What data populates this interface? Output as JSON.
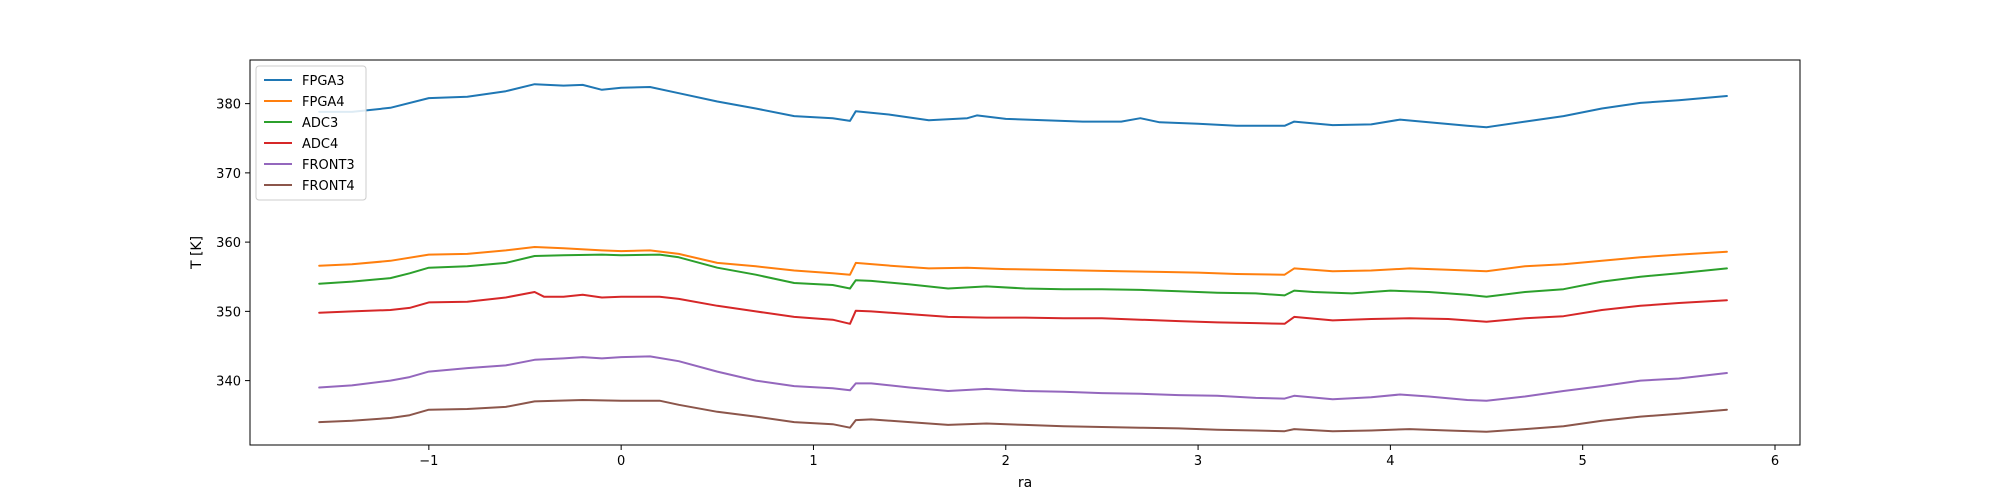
{
  "chart_data": {
    "type": "line",
    "title": "",
    "xlabel": "ra",
    "ylabel": "T [K]",
    "xlim": [
      -1.93,
      6.13
    ],
    "ylim": [
      330.7,
      386.3
    ],
    "xticks": [
      -1,
      0,
      1,
      2,
      3,
      4,
      5,
      6
    ],
    "yticks": [
      340,
      350,
      360,
      370,
      380
    ],
    "grid": false,
    "legend_position": "top-left",
    "series": [
      {
        "name": "FPGA3",
        "color": "#1f77b4",
        "x": [
          -1.57,
          -1.4,
          -1.2,
          -1.0,
          -0.8,
          -0.6,
          -0.45,
          -0.3,
          -0.2,
          -0.1,
          0.0,
          0.15,
          0.3,
          0.5,
          0.7,
          0.9,
          1.1,
          1.19,
          1.22,
          1.4,
          1.6,
          1.8,
          1.85,
          2.0,
          2.2,
          2.4,
          2.6,
          2.7,
          2.8,
          3.0,
          3.2,
          3.45,
          3.5,
          3.7,
          3.9,
          4.05,
          4.2,
          4.4,
          4.5,
          4.7,
          4.9,
          5.1,
          5.3,
          5.5,
          5.75
        ],
        "y": [
          378.8,
          378.8,
          379.4,
          380.8,
          381.0,
          381.8,
          382.8,
          382.6,
          382.7,
          382.0,
          382.3,
          382.4,
          381.5,
          380.3,
          379.3,
          378.2,
          377.9,
          377.5,
          378.9,
          378.4,
          377.6,
          377.9,
          378.3,
          377.8,
          377.6,
          377.4,
          377.4,
          377.9,
          377.3,
          377.1,
          376.8,
          376.8,
          377.4,
          376.9,
          377.0,
          377.7,
          377.3,
          376.8,
          376.6,
          377.4,
          378.2,
          379.3,
          380.1,
          380.5,
          381.1
        ]
      },
      {
        "name": "FPGA4",
        "color": "#ff7f0e",
        "x": [
          -1.57,
          -1.4,
          -1.2,
          -1.0,
          -0.8,
          -0.6,
          -0.45,
          -0.3,
          -0.1,
          0.0,
          0.15,
          0.3,
          0.5,
          0.7,
          0.9,
          1.1,
          1.19,
          1.22,
          1.4,
          1.6,
          1.8,
          2.0,
          2.2,
          2.4,
          2.6,
          2.8,
          3.0,
          3.2,
          3.45,
          3.5,
          3.7,
          3.9,
          4.1,
          4.3,
          4.5,
          4.7,
          4.9,
          5.1,
          5.3,
          5.5,
          5.75
        ],
        "y": [
          356.6,
          356.8,
          357.3,
          358.2,
          358.3,
          358.8,
          359.3,
          359.1,
          358.8,
          358.7,
          358.8,
          358.3,
          357.0,
          356.5,
          355.9,
          355.5,
          355.3,
          357.0,
          356.6,
          356.2,
          356.3,
          356.1,
          356.0,
          355.9,
          355.8,
          355.7,
          355.6,
          355.4,
          355.3,
          356.2,
          355.8,
          355.9,
          356.2,
          356.0,
          355.8,
          356.5,
          356.8,
          357.3,
          357.8,
          358.2,
          358.6
        ]
      },
      {
        "name": "ADC3",
        "color": "#2ca02c",
        "x": [
          -1.57,
          -1.4,
          -1.2,
          -1.1,
          -1.0,
          -0.8,
          -0.6,
          -0.45,
          -0.3,
          -0.1,
          0.0,
          0.2,
          0.3,
          0.5,
          0.7,
          0.9,
          1.1,
          1.19,
          1.22,
          1.3,
          1.5,
          1.7,
          1.9,
          2.1,
          2.3,
          2.5,
          2.7,
          2.9,
          3.1,
          3.3,
          3.45,
          3.5,
          3.6,
          3.8,
          4.0,
          4.2,
          4.4,
          4.5,
          4.7,
          4.9,
          5.1,
          5.3,
          5.5,
          5.75
        ],
        "y": [
          354.0,
          354.3,
          354.8,
          355.5,
          356.3,
          356.5,
          357.0,
          358.0,
          358.1,
          358.2,
          358.1,
          358.2,
          357.8,
          356.3,
          355.3,
          354.1,
          353.8,
          353.3,
          354.5,
          354.4,
          353.9,
          353.3,
          353.6,
          353.3,
          353.2,
          353.2,
          353.1,
          352.9,
          352.7,
          352.6,
          352.3,
          353.0,
          352.8,
          352.6,
          353.0,
          352.8,
          352.4,
          352.1,
          352.8,
          353.2,
          354.3,
          355.0,
          355.5,
          356.2
        ]
      },
      {
        "name": "ADC4",
        "color": "#d62728",
        "x": [
          -1.57,
          -1.4,
          -1.2,
          -1.1,
          -1.0,
          -0.8,
          -0.6,
          -0.45,
          -0.4,
          -0.3,
          -0.2,
          -0.1,
          0.0,
          0.2,
          0.3,
          0.5,
          0.7,
          0.9,
          1.1,
          1.19,
          1.22,
          1.3,
          1.5,
          1.7,
          1.9,
          2.1,
          2.3,
          2.5,
          2.7,
          2.9,
          3.1,
          3.3,
          3.45,
          3.5,
          3.7,
          3.9,
          4.1,
          4.3,
          4.5,
          4.7,
          4.9,
          5.1,
          5.3,
          5.5,
          5.75
        ],
        "y": [
          349.8,
          350.0,
          350.2,
          350.5,
          351.3,
          351.4,
          352.0,
          352.8,
          352.1,
          352.1,
          352.4,
          352.0,
          352.1,
          352.1,
          351.8,
          350.8,
          350.0,
          349.2,
          348.8,
          348.2,
          350.1,
          350.0,
          349.6,
          349.2,
          349.1,
          349.1,
          349.0,
          349.0,
          348.8,
          348.6,
          348.4,
          348.3,
          348.2,
          349.2,
          348.7,
          348.9,
          349.0,
          348.9,
          348.5,
          349.0,
          349.3,
          350.2,
          350.8,
          351.2,
          351.6
        ]
      },
      {
        "name": "FRONT3",
        "color": "#9467bd",
        "x": [
          -1.57,
          -1.4,
          -1.2,
          -1.1,
          -1.0,
          -0.8,
          -0.6,
          -0.45,
          -0.3,
          -0.2,
          -0.1,
          0.0,
          0.15,
          0.3,
          0.5,
          0.7,
          0.9,
          1.1,
          1.19,
          1.22,
          1.3,
          1.5,
          1.7,
          1.9,
          2.1,
          2.3,
          2.5,
          2.7,
          2.9,
          3.1,
          3.3,
          3.45,
          3.5,
          3.7,
          3.9,
          4.05,
          4.2,
          4.4,
          4.5,
          4.7,
          4.9,
          5.1,
          5.3,
          5.5,
          5.75
        ],
        "y": [
          339.0,
          339.3,
          340.0,
          340.5,
          341.3,
          341.8,
          342.2,
          343.0,
          343.2,
          343.4,
          343.2,
          343.4,
          343.5,
          342.8,
          341.3,
          340.0,
          339.2,
          338.9,
          338.6,
          339.6,
          339.6,
          339.0,
          338.5,
          338.8,
          338.5,
          338.4,
          338.2,
          338.1,
          337.9,
          337.8,
          337.5,
          337.4,
          337.8,
          337.3,
          337.6,
          338.0,
          337.7,
          337.2,
          337.1,
          337.7,
          338.5,
          339.2,
          340.0,
          340.3,
          341.1
        ]
      },
      {
        "name": "FRONT4",
        "color": "#8c564b",
        "x": [
          -1.57,
          -1.4,
          -1.2,
          -1.1,
          -1.0,
          -0.8,
          -0.6,
          -0.45,
          -0.2,
          0.0,
          0.2,
          0.3,
          0.5,
          0.7,
          0.9,
          1.1,
          1.19,
          1.22,
          1.3,
          1.5,
          1.7,
          1.9,
          2.1,
          2.3,
          2.5,
          2.7,
          2.9,
          3.1,
          3.3,
          3.45,
          3.5,
          3.7,
          3.9,
          4.1,
          4.3,
          4.5,
          4.7,
          4.9,
          5.1,
          5.3,
          5.5,
          5.75
        ],
        "y": [
          334.0,
          334.2,
          334.6,
          335.0,
          335.8,
          335.9,
          336.2,
          337.0,
          337.2,
          337.1,
          337.1,
          336.5,
          335.5,
          334.8,
          334.0,
          333.7,
          333.2,
          334.3,
          334.4,
          334.0,
          333.6,
          333.8,
          333.6,
          333.4,
          333.3,
          333.2,
          333.1,
          332.9,
          332.8,
          332.7,
          333.0,
          332.7,
          332.8,
          333.0,
          332.8,
          332.6,
          333.0,
          333.4,
          334.2,
          334.8,
          335.2,
          335.8
        ]
      }
    ]
  }
}
